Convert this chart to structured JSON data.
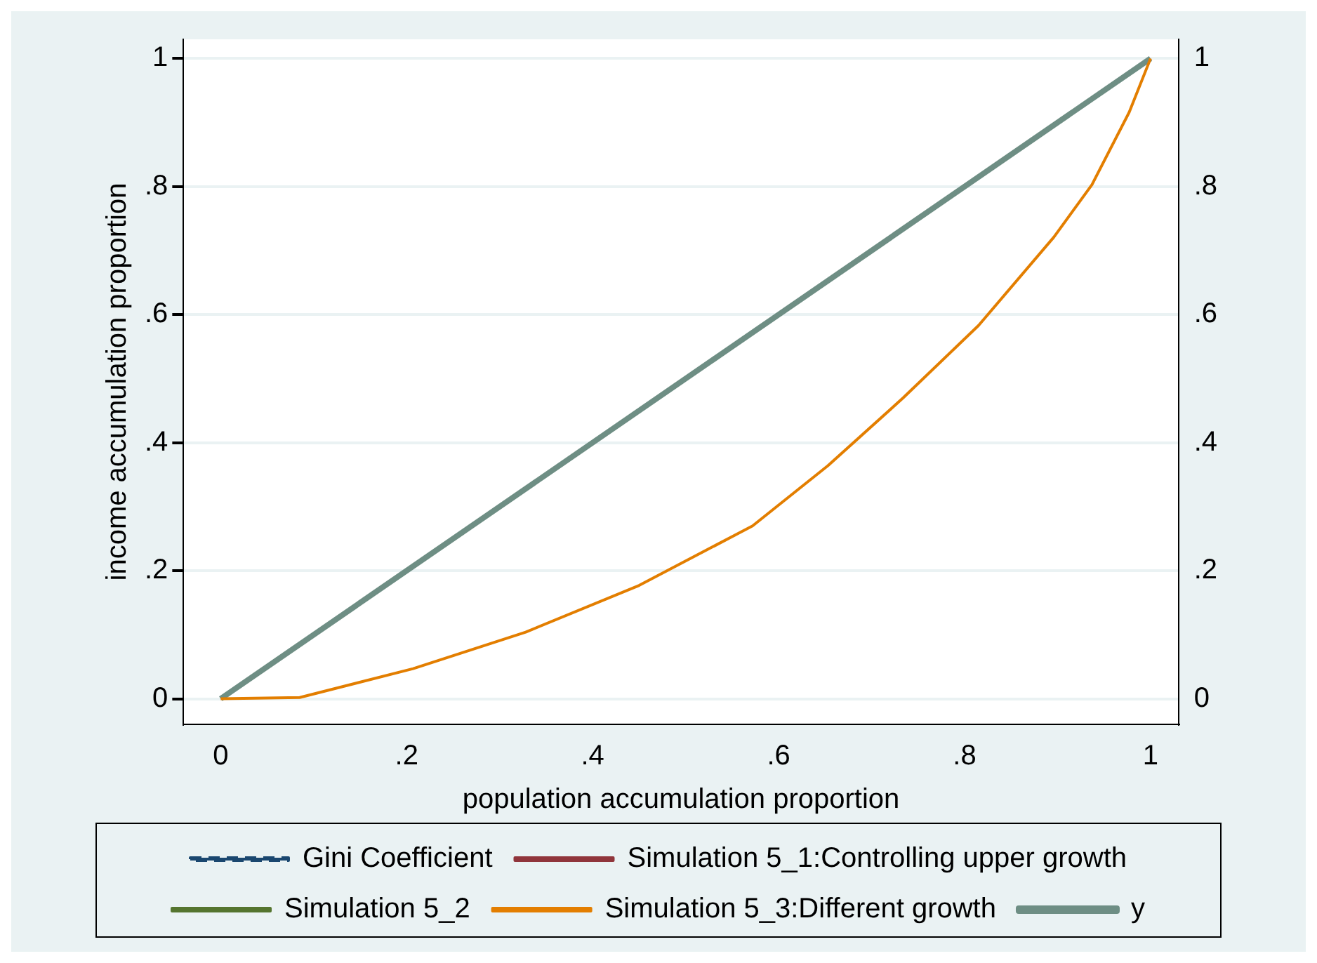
{
  "chart_data": {
    "type": "line",
    "xlabel": "population accumulation proportion",
    "ylabel": "income accumulation proportion",
    "x": [
      0,
      0.085,
      0.207,
      0.328,
      0.45,
      0.572,
      0.653,
      0.734,
      0.815,
      0.896,
      0.937,
      0.977,
      1
    ],
    "series": [
      {
        "name": "Gini Coefficient",
        "color": "#1a476f",
        "line_style": "dashed",
        "values": [
          null,
          null,
          null,
          null,
          null,
          null,
          null,
          null,
          null,
          null,
          null,
          null,
          null
        ]
      },
      {
        "name": "Simulation 5_1:Controlling upper growth",
        "color": "#90353b",
        "values": [
          null,
          null,
          null,
          null,
          null,
          null,
          null,
          null,
          null,
          null,
          null,
          null,
          null
        ]
      },
      {
        "name": "Simulation 5_2",
        "color": "#55752f",
        "values": [
          null,
          null,
          null,
          null,
          null,
          null,
          null,
          null,
          null,
          null,
          null,
          null,
          null
        ]
      },
      {
        "name": "Simulation 5_3:Different growth",
        "color": "#e37e00",
        "values": [
          0,
          0.002,
          0.047,
          0.104,
          0.177,
          0.27,
          0.364,
          0.47,
          0.583,
          0.721,
          0.803,
          0.916,
          1
        ]
      },
      {
        "name": "y",
        "color": "#6e8e84",
        "x": [
          0,
          1
        ],
        "values": [
          0,
          1
        ]
      }
    ],
    "xlim": [
      -0.04,
      1.03
    ],
    "xticks": [
      0,
      {
        "value": 0.2,
        "label": ".2"
      },
      {
        "value": 0.4,
        "label": ".4"
      },
      {
        "value": 0.6,
        "label": ".6"
      },
      {
        "value": 0.8,
        "label": ".8"
      },
      1
    ],
    "ylim": [
      -0.04,
      1.03
    ],
    "yticks": [
      0,
      {
        "value": 0.2,
        "label": ".2"
      },
      {
        "value": 0.4,
        "label": ".4"
      },
      {
        "value": 0.6,
        "label": ".6"
      },
      {
        "value": 0.8,
        "label": ".8"
      },
      1
    ],
    "y2lim": [
      -0.04,
      1.03
    ],
    "y2ticks": [
      0,
      {
        "value": 0.2,
        "label": ".2"
      },
      {
        "value": 0.4,
        "label": ".4"
      },
      {
        "value": 0.6,
        "label": ".6"
      },
      {
        "value": 0.8,
        "label": ".8"
      },
      1
    ],
    "grid": "y",
    "legend": "bottom",
    "marker": "none",
    "line_style": "solid"
  }
}
